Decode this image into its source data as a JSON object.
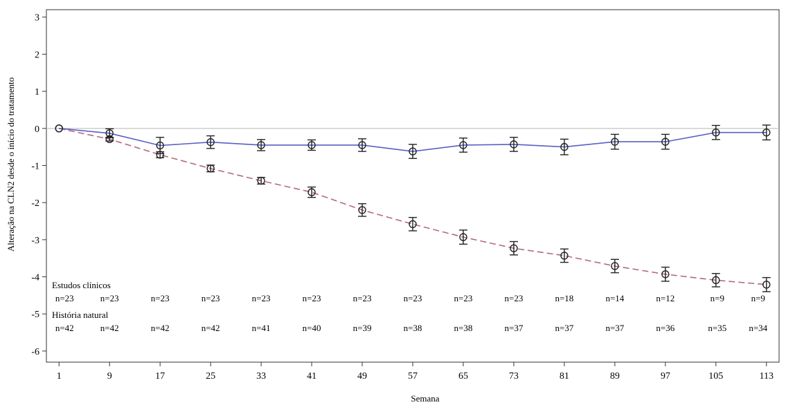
{
  "chart_data": {
    "type": "line",
    "xlabel": "Semana",
    "ylabel": "Alteração na CLN2 desde o início do tratamento",
    "x": [
      1,
      9,
      17,
      25,
      33,
      41,
      49,
      57,
      65,
      73,
      81,
      89,
      97,
      105,
      113
    ],
    "yticks": [
      3,
      2,
      1,
      0,
      -1,
      -2,
      -3,
      -4,
      -5,
      -6
    ],
    "ylim": [
      -6.3,
      3.2
    ],
    "xlim": [
      -1,
      115
    ],
    "grid": false,
    "reference_line_y": 0,
    "series": [
      {
        "color": "#5a5ec4",
        "line_style": "solid",
        "values": [
          0,
          -0.13,
          -0.46,
          -0.37,
          -0.45,
          -0.45,
          -0.45,
          -0.62,
          -0.45,
          -0.43,
          -0.5,
          -0.36,
          -0.36,
          -0.11,
          -0.11
        ],
        "error": [
          0,
          0.12,
          0.22,
          0.17,
          0.15,
          0.14,
          0.17,
          0.19,
          0.19,
          0.19,
          0.21,
          0.2,
          0.2,
          0.19,
          0.2
        ]
      },
      {
        "color": "#b36a78",
        "line_style": "dashed",
        "values": [
          0,
          -0.29,
          -0.71,
          -1.08,
          -1.41,
          -1.72,
          -2.2,
          -2.58,
          -2.93,
          -3.23,
          -3.43,
          -3.71,
          -3.93,
          -4.09,
          -4.21
        ],
        "error": [
          0,
          0.05,
          0.08,
          0.09,
          0.09,
          0.14,
          0.17,
          0.18,
          0.19,
          0.18,
          0.18,
          0.18,
          0.19,
          0.18,
          0.19
        ]
      }
    ],
    "tables": [
      {
        "label": "Estudos clínicos",
        "counts": [
          "n=23",
          "n=23",
          "n=23",
          "n=23",
          "n=23",
          "n=23",
          "n=23",
          "n=23",
          "n=23",
          "n=23",
          "n=18",
          "n=14",
          "n=12",
          "n=9",
          "n=9"
        ]
      },
      {
        "label": "História natural",
        "counts": [
          "n=42",
          "n=42",
          "n=42",
          "n=42",
          "n=41",
          "n=40",
          "n=39",
          "n=38",
          "n=38",
          "n=37",
          "n=37",
          "n=37",
          "n=36",
          "n=35",
          "n=34"
        ]
      }
    ]
  }
}
